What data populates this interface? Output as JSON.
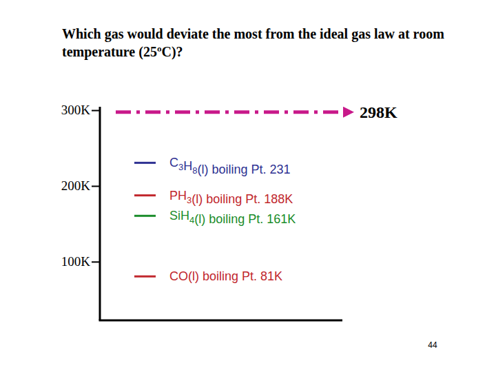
{
  "chart_data": {
    "type": "strip",
    "title": "Which gas would deviate the most from the ideal gas law at room temperature (25ºC)?",
    "categories": [
      "C3H8(l) boiling Pt. 231",
      "PH3(l) boiling Pt. 188K",
      "SiH4(l) boiling Pt. 161K",
      "CO(l) boiling Pt. 81K"
    ],
    "values": [
      231,
      188,
      161,
      81
    ],
    "colors": [
      "#2e3192",
      "#c1272d",
      "#1a8c2a",
      "#c1272d"
    ],
    "ylim": [
      23,
      305
    ],
    "yticks": [
      {
        "value": 100,
        "label": "100K"
      },
      {
        "value": 200,
        "label": "200K"
      },
      {
        "value": 300,
        "label": "300K"
      }
    ],
    "reference_line": {
      "value": 298,
      "label": "298K",
      "color": "#c8198a",
      "line_style": "dashdot"
    },
    "footer": "44"
  }
}
